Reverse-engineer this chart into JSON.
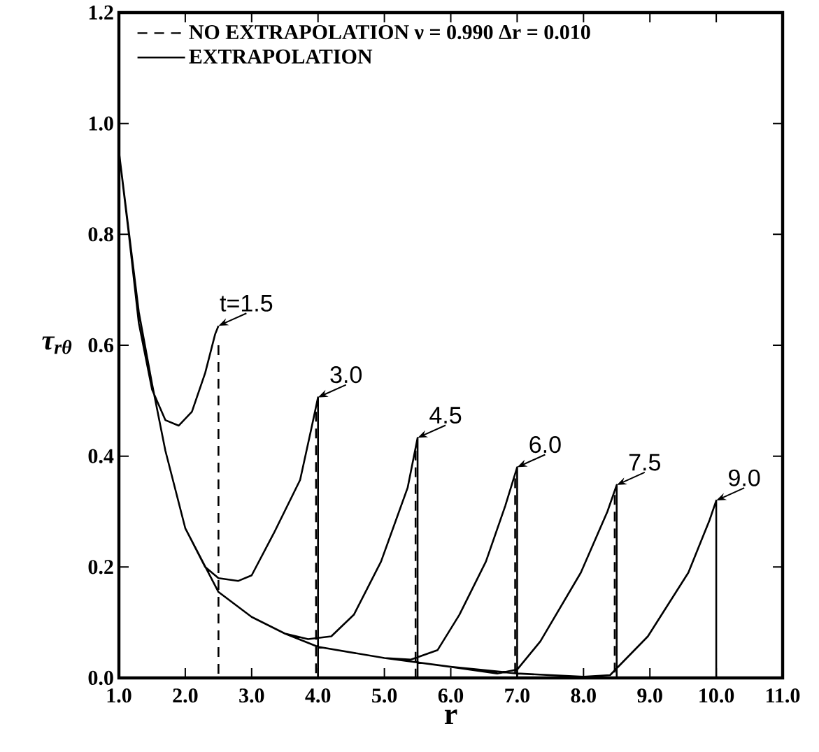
{
  "chart_data": {
    "type": "line",
    "xlabel": "r",
    "ylabel": "τ$_{rθ}$",
    "xlim": [
      1.0,
      11.0
    ],
    "ylim": [
      0.0,
      1.2
    ],
    "xticks": [
      {
        "value": 1,
        "label": "1.0"
      },
      {
        "value": 2,
        "label": "2.0"
      },
      {
        "value": 3,
        "label": "3.0"
      },
      {
        "value": 4,
        "label": "4.0"
      },
      {
        "value": 5,
        "label": "5.0"
      },
      {
        "value": 6,
        "label": "6.0"
      },
      {
        "value": 7,
        "label": "7.0"
      },
      {
        "value": 8,
        "label": "8.0"
      },
      {
        "value": 9,
        "label": "9.0"
      },
      {
        "value": 10,
        "label": "10.0"
      },
      {
        "value": 11,
        "label": "11.0"
      }
    ],
    "yticks": [
      {
        "value": 0,
        "label": "0.0"
      },
      {
        "value": 0.2,
        "label": "0.2"
      },
      {
        "value": 0.4,
        "label": "0.4"
      },
      {
        "value": 0.6,
        "label": "0.6"
      },
      {
        "value": 0.8,
        "label": "0.8"
      },
      {
        "value": 1.0,
        "label": "1.0"
      },
      {
        "value": 1.2,
        "label": "1.2"
      }
    ],
    "grid": false,
    "legend": "top left",
    "marker": "none",
    "series": [
      {
        "name": "NO EXTRAPOLATION  ν = 0.990  Δr = 0.010",
        "color": "#000000",
        "line_style": "dashed",
        "x": [
          2.5,
          2.5,
          null,
          3.97,
          3.97,
          null,
          5.47,
          5.47,
          null,
          6.97,
          6.97,
          null,
          8.47,
          8.47
        ],
        "values": [
          0.6,
          0.0,
          null,
          0.48,
          0.0,
          null,
          0.41,
          0.0,
          null,
          0.36,
          0.0,
          null,
          0.33,
          0.0
        ]
      },
      {
        "name": "EXTRAPOLATION",
        "color": "#000000",
        "line_style": "solid",
        "x": [
          1.0,
          1.15,
          1.3,
          1.5,
          1.7,
          1.9,
          2.1,
          2.3,
          2.45,
          2.5,
          null,
          1.0,
          1.3,
          1.5,
          1.7,
          2.0,
          2.3,
          2.5,
          2.8,
          3.0,
          3.33,
          3.73,
          3.9,
          4.0,
          4.0,
          null,
          1.0,
          1.3,
          1.5,
          1.7,
          2.0,
          2.5,
          3.0,
          3.5,
          3.85,
          4.2,
          4.54,
          4.95,
          5.35,
          5.5,
          5.5,
          null,
          1.0,
          1.3,
          1.5,
          1.7,
          2.0,
          2.5,
          3.0,
          3.5,
          4.0,
          5.0,
          5.4,
          5.8,
          6.13,
          6.53,
          6.82,
          7.0,
          7.0,
          null,
          1.0,
          1.3,
          1.5,
          1.7,
          2.0,
          2.5,
          3.0,
          3.5,
          4.0,
          5.0,
          6.0,
          6.7,
          7.0,
          7.35,
          7.96,
          8.36,
          8.5,
          8.5,
          null,
          1.0,
          1.3,
          1.5,
          1.7,
          2.0,
          2.5,
          3.0,
          3.5,
          4.0,
          5.0,
          6.0,
          7.0,
          8.0,
          8.4,
          8.97,
          9.58,
          9.9,
          10.0,
          10.0
        ],
        "values": [
          0.95,
          0.8,
          0.64,
          0.52,
          0.465,
          0.455,
          0.48,
          0.55,
          0.62,
          0.635,
          null,
          0.95,
          0.66,
          0.53,
          0.41,
          0.27,
          0.2,
          0.18,
          0.175,
          0.185,
          0.26,
          0.357,
          0.45,
          0.506,
          0.0,
          null,
          0.95,
          0.66,
          0.53,
          0.41,
          0.27,
          0.155,
          0.11,
          0.08,
          0.07,
          0.075,
          0.114,
          0.21,
          0.343,
          0.433,
          0.0,
          null,
          0.95,
          0.66,
          0.53,
          0.41,
          0.27,
          0.155,
          0.11,
          0.08,
          0.056,
          0.036,
          0.033,
          0.05,
          0.114,
          0.21,
          0.31,
          0.38,
          0.0,
          null,
          0.95,
          0.66,
          0.53,
          0.41,
          0.27,
          0.155,
          0.11,
          0.08,
          0.056,
          0.036,
          0.02,
          0.008,
          0.015,
          0.066,
          0.19,
          0.3,
          0.348,
          0.0,
          null,
          0.95,
          0.66,
          0.53,
          0.41,
          0.27,
          0.155,
          0.11,
          0.08,
          0.056,
          0.036,
          0.02,
          0.008,
          0.002,
          0.005,
          0.075,
          0.19,
          0.285,
          0.32,
          0.0
        ]
      }
    ],
    "annotations": [
      {
        "text": "t=1.5",
        "x": 2.5,
        "y": 0.635
      },
      {
        "text": "3.0",
        "x": 4.0,
        "y": 0.506
      },
      {
        "text": "4.5",
        "x": 5.5,
        "y": 0.433
      },
      {
        "text": "6.0",
        "x": 7.0,
        "y": 0.38
      },
      {
        "text": "7.5",
        "x": 8.5,
        "y": 0.348
      },
      {
        "text": "9.0",
        "x": 10.0,
        "y": 0.32
      }
    ]
  }
}
